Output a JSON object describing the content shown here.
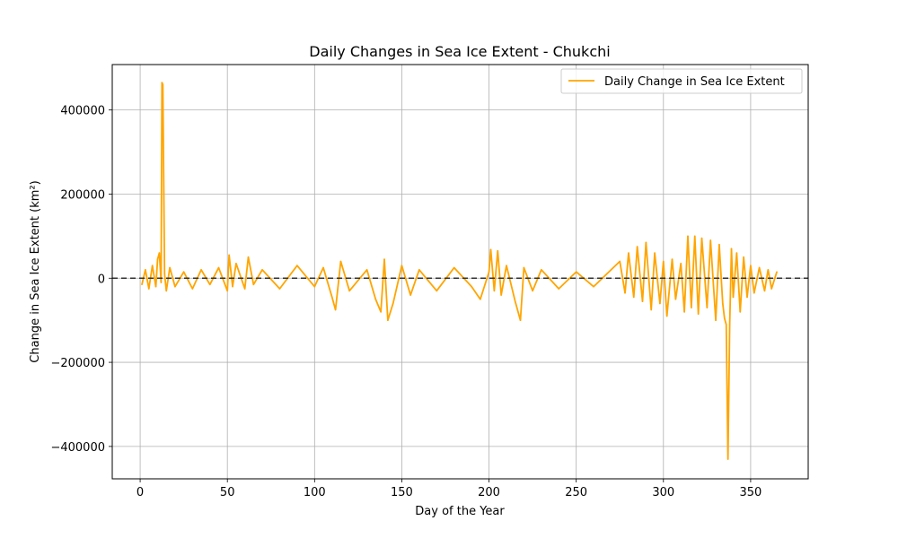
{
  "chart_data": {
    "type": "line",
    "title": "Daily Changes in Sea Ice Extent - Chukchi",
    "xlabel": "Day of the Year",
    "ylabel": "Change in Sea Ice Extent (km²)",
    "xlim": [
      -16,
      383
    ],
    "ylim": [
      -477000,
      508000
    ],
    "xticks": [
      0,
      50,
      100,
      150,
      200,
      250,
      300,
      350
    ],
    "yticks": [
      -400000,
      -200000,
      0,
      200000,
      400000
    ],
    "ytick_labels": [
      "−400000",
      "−200000",
      "0",
      "200000",
      "400000"
    ],
    "grid": true,
    "legend_position": "upper right",
    "reference_line": {
      "y": 0,
      "style": "dashed",
      "color": "#333333"
    },
    "series": [
      {
        "name": "Daily Change in Sea Ice Extent",
        "color": "#FFA500",
        "x": [
          1,
          3,
          5,
          7,
          9,
          10,
          11,
          12,
          12.5,
          13,
          14,
          15,
          17,
          20,
          25,
          30,
          35,
          40,
          45,
          50,
          51,
          53,
          55,
          60,
          62,
          65,
          70,
          80,
          90,
          100,
          105,
          110,
          112,
          115,
          120,
          130,
          135,
          138,
          140,
          142,
          145,
          150,
          155,
          160,
          170,
          180,
          190,
          195,
          200,
          201,
          203,
          205,
          207,
          210,
          215,
          218,
          220,
          225,
          230,
          240,
          250,
          260,
          270,
          275,
          278,
          280,
          283,
          285,
          288,
          290,
          293,
          295,
          298,
          300,
          302,
          305,
          307,
          310,
          312,
          314,
          316,
          318,
          320,
          322,
          325,
          327,
          330,
          332,
          334,
          335,
          336,
          337,
          338,
          339,
          340,
          342,
          344,
          346,
          348,
          350,
          352,
          355,
          358,
          360,
          362,
          365
        ],
        "y": [
          -15000,
          20000,
          -25000,
          30000,
          -20000,
          45000,
          60000,
          -10000,
          465000,
          460000,
          10000,
          -30000,
          25000,
          -20000,
          15000,
          -25000,
          20000,
          -15000,
          25000,
          -30000,
          55000,
          -20000,
          35000,
          -25000,
          50000,
          -15000,
          20000,
          -25000,
          30000,
          -20000,
          25000,
          -45000,
          -75000,
          40000,
          -30000,
          20000,
          -50000,
          -80000,
          45000,
          -100000,
          -60000,
          30000,
          -40000,
          20000,
          -30000,
          25000,
          -20000,
          -50000,
          15000,
          68000,
          -30000,
          65000,
          -40000,
          30000,
          -55000,
          -100000,
          25000,
          -30000,
          20000,
          -25000,
          15000,
          -20000,
          20000,
          40000,
          -35000,
          60000,
          -45000,
          75000,
          -55000,
          85000,
          -75000,
          60000,
          -60000,
          40000,
          -90000,
          45000,
          -50000,
          35000,
          -80000,
          100000,
          -70000,
          100000,
          -85000,
          95000,
          -70000,
          90000,
          -100000,
          80000,
          -60000,
          -95000,
          -110000,
          -430000,
          -110000,
          70000,
          -45000,
          60000,
          -80000,
          50000,
          -45000,
          30000,
          -35000,
          25000,
          -30000,
          20000,
          -25000,
          15000
        ]
      }
    ]
  }
}
